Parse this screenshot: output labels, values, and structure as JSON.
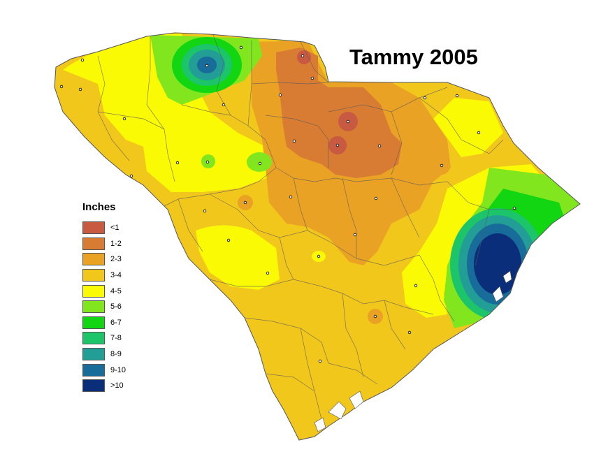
{
  "title": "Tammy 2005",
  "legend": {
    "heading": "Inches",
    "items": [
      {
        "label": "<1",
        "color": "#c85a41"
      },
      {
        "label": "1-2",
        "color": "#d87c33"
      },
      {
        "label": "2-3",
        "color": "#eaa224"
      },
      {
        "label": "3-4",
        "color": "#f2c71b"
      },
      {
        "label": "4-5",
        "color": "#fafa05"
      },
      {
        "label": "5-6",
        "color": "#82e61e"
      },
      {
        "label": "6-7",
        "color": "#11d611"
      },
      {
        "label": "7-8",
        "color": "#1cc46a"
      },
      {
        "label": "8-9",
        "color": "#229e96"
      },
      {
        "label": "9-10",
        "color": "#186c9a"
      },
      {
        "label": ">10",
        "color": "#0b2e7a"
      }
    ]
  }
}
